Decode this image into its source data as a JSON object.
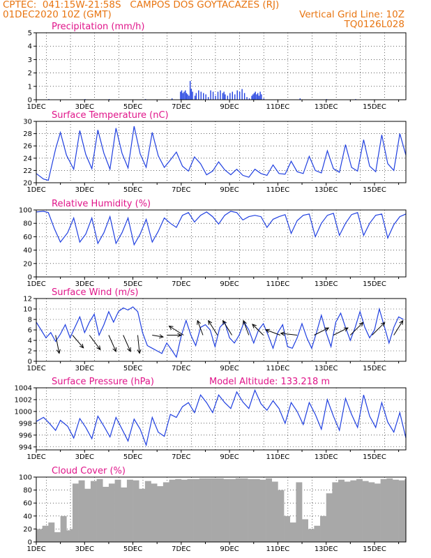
{
  "header": {
    "line1": "CPTEC:  041:15W-21:58S   CAMPOS DOS GOYTACAZES (RJ)",
    "line2": "01DEC2020 10Z (GMT)",
    "grid_note": "Vertical Grid Line: 10Z",
    "code": "TQ0126L028"
  },
  "colors": {
    "header": "#e87511",
    "title": "#e0158a",
    "series": "#1f3fe0",
    "cloud": "#a8a8a8",
    "grid": "#000000"
  },
  "x_ticks": [
    "1DEC",
    "3DEC",
    "5DEC",
    "7DEC",
    "9DEC",
    "11DEC",
    "13DEC",
    "15DEC"
  ],
  "chart_data": [
    {
      "type": "bar",
      "title": "Precipitation (mm/h)",
      "x_unit": "days since 01DEC2020 00Z",
      "ylim": [
        0,
        5
      ],
      "yticks": [
        0,
        1,
        2,
        3,
        4,
        5
      ],
      "series": [
        {
          "x": [
            0.5,
            2.0,
            3.0,
            4.5,
            5.6,
            5.95,
            6.0,
            6.05,
            6.1,
            6.15,
            6.2,
            6.25,
            6.3,
            6.35,
            6.4,
            6.45,
            6.55,
            6.6,
            6.7,
            6.8,
            6.9,
            7.0,
            7.1,
            7.2,
            7.3,
            7.4,
            7.5,
            7.6,
            7.7,
            7.75,
            7.8,
            7.9,
            8.0,
            8.1,
            8.2,
            8.3,
            8.4,
            8.5,
            8.6,
            8.7,
            8.8,
            8.9,
            8.95,
            9.0,
            9.05,
            9.1,
            9.15,
            9.2,
            9.25,
            9.3,
            9.4,
            10.9,
            12.0,
            13.2
          ],
          "values": [
            0.05,
            0.05,
            0.05,
            0.05,
            0.1,
            0.6,
            0.7,
            0.5,
            0.6,
            0.7,
            0.5,
            0.4,
            0.3,
            1.4,
            0.8,
            0.6,
            0.3,
            0.5,
            0.7,
            0.6,
            0.5,
            0.4,
            0.2,
            0.7,
            0.6,
            0.3,
            0.6,
            0.7,
            0.5,
            0.6,
            0.4,
            0.3,
            0.5,
            0.6,
            0.4,
            0.7,
            0.6,
            0.8,
            0.5,
            0.2,
            0.1,
            0.3,
            0.4,
            0.5,
            0.6,
            0.4,
            0.5,
            0.3,
            0.6,
            0.4,
            0.1,
            0.1,
            0.05,
            0.05
          ]
        }
      ]
    },
    {
      "type": "line",
      "title": "Surface Temperature (nC)",
      "ylim": [
        20,
        30
      ],
      "yticks": [
        20,
        22,
        24,
        26,
        28,
        30
      ],
      "series": [
        {
          "x": [
            0.0,
            0.3,
            0.5,
            0.8,
            1.0,
            1.25,
            1.55,
            1.8,
            2.05,
            2.3,
            2.55,
            2.8,
            3.05,
            3.3,
            3.55,
            3.8,
            4.05,
            4.3,
            4.55,
            4.8,
            5.05,
            5.3,
            5.55,
            5.8,
            6.05,
            6.3,
            6.55,
            6.8,
            7.05,
            7.3,
            7.55,
            7.8,
            8.05,
            8.3,
            8.55,
            8.8,
            9.05,
            9.3,
            9.55,
            9.8,
            10.05,
            10.3,
            10.55,
            10.8,
            11.05,
            11.3,
            11.55,
            11.8,
            12.05,
            12.3,
            12.55,
            12.8,
            13.05,
            13.3,
            13.55,
            13.8,
            14.05,
            14.3,
            14.55,
            14.8,
            15.05,
            15.3
          ],
          "values": [
            21.5,
            20.6,
            20.4,
            25.5,
            28.2,
            24.5,
            22.2,
            28.5,
            24.6,
            22.3,
            28.6,
            24.8,
            22.2,
            28.9,
            24.8,
            22.4,
            29.2,
            24.7,
            22.5,
            28.2,
            24.4,
            22.5,
            23.7,
            25.0,
            22.7,
            21.9,
            24.2,
            23.1,
            21.3,
            21.9,
            23.4,
            22.1,
            21.3,
            22.2,
            21.2,
            20.9,
            22.2,
            21.5,
            21.2,
            22.9,
            21.5,
            21.4,
            23.5,
            21.8,
            21.5,
            24.3,
            22.0,
            21.6,
            25.2,
            22.3,
            21.7,
            26.2,
            22.5,
            21.9,
            27.0,
            22.7,
            21.8,
            27.8,
            23.1,
            22.0,
            28.0,
            24.5
          ]
        }
      ]
    },
    {
      "type": "line",
      "title": "Relative Humidity (%)",
      "ylim": [
        0,
        100
      ],
      "yticks": [
        0,
        20,
        40,
        60,
        80,
        100
      ],
      "series": [
        {
          "x": [
            0.0,
            0.3,
            0.5,
            0.75,
            1.0,
            1.3,
            1.55,
            1.8,
            2.05,
            2.3,
            2.55,
            2.8,
            3.05,
            3.3,
            3.55,
            3.8,
            4.05,
            4.3,
            4.55,
            4.8,
            5.05,
            5.3,
            5.55,
            5.8,
            6.05,
            6.3,
            6.55,
            6.8,
            7.05,
            7.3,
            7.55,
            7.8,
            8.05,
            8.3,
            8.55,
            8.8,
            9.05,
            9.3,
            9.55,
            9.8,
            10.05,
            10.3,
            10.55,
            10.8,
            11.05,
            11.3,
            11.55,
            11.8,
            12.05,
            12.3,
            12.55,
            12.8,
            13.05,
            13.3,
            13.55,
            13.8,
            14.05,
            14.3,
            14.55,
            14.8,
            15.05,
            15.3
          ],
          "values": [
            97,
            98,
            96,
            72,
            52,
            66,
            88,
            52,
            64,
            88,
            50,
            66,
            90,
            50,
            66,
            88,
            48,
            64,
            86,
            52,
            68,
            88,
            80,
            74,
            92,
            96,
            82,
            92,
            97,
            90,
            79,
            92,
            98,
            96,
            85,
            90,
            92,
            90,
            74,
            86,
            90,
            93,
            65,
            84,
            92,
            94,
            60,
            80,
            92,
            95,
            62,
            80,
            93,
            96,
            62,
            80,
            92,
            94,
            58,
            78,
            90,
            94
          ]
        }
      ]
    },
    {
      "type": "line",
      "title": "Surface Wind (m/s)",
      "ylim": [
        0,
        12
      ],
      "yticks": [
        0,
        2,
        4,
        6,
        8,
        10,
        12
      ],
      "series": [
        {
          "x": [
            0.0,
            0.2,
            0.4,
            0.6,
            0.8,
            1.0,
            1.2,
            1.4,
            1.6,
            1.8,
            2.0,
            2.2,
            2.4,
            2.6,
            2.8,
            3.0,
            3.2,
            3.4,
            3.6,
            3.8,
            4.0,
            4.2,
            4.4,
            4.6,
            4.8,
            5.0,
            5.2,
            5.4,
            5.6,
            5.8,
            6.0,
            6.2,
            6.4,
            6.6,
            6.8,
            7.0,
            7.2,
            7.4,
            7.6,
            7.8,
            8.0,
            8.2,
            8.4,
            8.6,
            8.8,
            9.0,
            9.2,
            9.4,
            9.6,
            9.8,
            10.0,
            10.2,
            10.4,
            10.6,
            10.8,
            11.0,
            11.2,
            11.4,
            11.6,
            11.8,
            12.0,
            12.2,
            12.4,
            12.6,
            12.8,
            13.0,
            13.2,
            13.4,
            13.6,
            13.8,
            14.0,
            14.2,
            14.4,
            14.6,
            14.8,
            15.0,
            15.2
          ],
          "values": [
            7.5,
            6.0,
            4.5,
            5.5,
            3.8,
            5.2,
            7.0,
            4.5,
            6.5,
            8.5,
            5.5,
            7.5,
            9.0,
            5.0,
            7.0,
            9.5,
            7.5,
            9.5,
            10.2,
            9.8,
            10.4,
            9.5,
            5.5,
            3.0,
            2.5,
            2.0,
            1.5,
            3.5,
            2.2,
            0.8,
            4.8,
            7.8,
            5.0,
            3.0,
            6.5,
            7.0,
            6.0,
            2.8,
            6.5,
            7.5,
            4.5,
            3.5,
            5.0,
            7.5,
            6.0,
            3.5,
            6.0,
            7.2,
            5.0,
            2.5,
            5.5,
            7.0,
            2.8,
            2.5,
            4.5,
            7.2,
            4.5,
            2.5,
            5.5,
            8.8,
            5.5,
            2.8,
            7.5,
            9.2,
            6.5,
            4.0,
            6.5,
            9.5,
            6.5,
            4.5,
            6.0,
            10.0,
            6.8,
            3.5,
            6.5,
            8.5,
            8.0
          ]
        }
      ],
      "wind_arrows": [
        {
          "x": 0.8,
          "u": 0.2,
          "v": -1.0
        },
        {
          "x": 1.5,
          "u": 0.6,
          "v": -0.7
        },
        {
          "x": 2.2,
          "u": 0.6,
          "v": -0.8
        },
        {
          "x": 3.0,
          "u": 0.4,
          "v": -0.9
        },
        {
          "x": 3.6,
          "u": 0.4,
          "v": -0.9
        },
        {
          "x": 4.2,
          "u": 0.1,
          "v": -1.0
        },
        {
          "x": 4.8,
          "u": 0.6,
          "v": -0.1
        },
        {
          "x": 5.4,
          "u": 0.8,
          "v": 0.0
        },
        {
          "x": 6.1,
          "u": -0.8,
          "v": 0.5
        },
        {
          "x": 6.9,
          "u": -0.3,
          "v": 0.8
        },
        {
          "x": 7.5,
          "u": -0.5,
          "v": 0.8
        },
        {
          "x": 8.1,
          "u": -0.5,
          "v": 0.8
        },
        {
          "x": 8.8,
          "u": -0.3,
          "v": 0.8
        },
        {
          "x": 9.4,
          "u": -0.6,
          "v": 0.6
        },
        {
          "x": 10.1,
          "u": -0.8,
          "v": 0.3
        },
        {
          "x": 10.8,
          "u": -0.9,
          "v": 0.1
        },
        {
          "x": 11.5,
          "u": 0.8,
          "v": 0.4
        },
        {
          "x": 12.3,
          "u": 0.8,
          "v": 0.4
        },
        {
          "x": 13.0,
          "u": 0.7,
          "v": 0.7
        },
        {
          "x": 13.9,
          "u": 0.7,
          "v": 0.7
        },
        {
          "x": 14.8,
          "u": 0.5,
          "v": 0.8
        }
      ]
    },
    {
      "type": "line",
      "title": "Surface Pressure (hPa)",
      "annotation": "Model Altitude: 133.218  m",
      "ylim": [
        993.5,
        1004
      ],
      "yticks": [
        994,
        996,
        998,
        1000,
        1002,
        1004
      ],
      "series": [
        {
          "x": [
            0.0,
            0.3,
            0.5,
            0.8,
            1.0,
            1.3,
            1.55,
            1.8,
            2.05,
            2.3,
            2.55,
            2.8,
            3.05,
            3.3,
            3.55,
            3.8,
            4.05,
            4.3,
            4.55,
            4.8,
            5.05,
            5.3,
            5.55,
            5.8,
            6.05,
            6.3,
            6.55,
            6.8,
            7.05,
            7.3,
            7.55,
            7.8,
            8.05,
            8.3,
            8.55,
            8.8,
            9.05,
            9.3,
            9.55,
            9.8,
            10.05,
            10.3,
            10.55,
            10.8,
            11.05,
            11.3,
            11.55,
            11.8,
            12.05,
            12.3,
            12.55,
            12.8,
            13.05,
            13.3,
            13.55,
            13.8,
            14.05,
            14.3,
            14.55,
            14.8,
            15.05,
            15.3
          ],
          "values": [
            998.3,
            999.0,
            998.2,
            996.8,
            998.5,
            997.5,
            995.5,
            998.8,
            997.3,
            995.4,
            999.2,
            997.5,
            995.7,
            999.0,
            997.0,
            995.0,
            998.7,
            997.0,
            994.3,
            999.0,
            996.5,
            995.8,
            999.5,
            999.0,
            1000.8,
            1001.5,
            999.8,
            1002.8,
            1001.5,
            999.8,
            1002.8,
            1001.5,
            1000.5,
            1003.3,
            1001.6,
            1000.5,
            1003.6,
            1001.3,
            1000.2,
            1001.8,
            1000.5,
            998.0,
            1001.5,
            1000.0,
            997.8,
            1001.5,
            999.5,
            997.0,
            1002.0,
            999.2,
            996.8,
            1002.2,
            999.5,
            997.3,
            1002.8,
            999.2,
            997.3,
            1001.5,
            998.2,
            996.5,
            999.8,
            995.5
          ]
        }
      ]
    },
    {
      "type": "bar",
      "title": "Cloud Cover (%)",
      "ylim": [
        0,
        100
      ],
      "yticks": [
        0,
        20,
        40,
        60,
        80,
        100
      ],
      "series": [
        {
          "x": [
            0.0,
            0.25,
            0.5,
            0.75,
            1.0,
            1.25,
            1.4,
            1.5,
            1.75,
            2.0,
            2.25,
            2.5,
            2.75,
            3.0,
            3.25,
            3.5,
            3.75,
            4.0,
            4.25,
            4.5,
            4.75,
            5.0,
            5.25,
            5.5,
            5.75,
            6.0,
            6.25,
            6.5,
            6.75,
            7.0,
            7.25,
            7.5,
            7.75,
            8.0,
            8.25,
            8.5,
            8.75,
            9.0,
            9.25,
            9.5,
            9.75,
            10.0,
            10.25,
            10.5,
            10.75,
            11.0,
            11.25,
            11.5,
            11.75,
            12.0,
            12.25,
            12.5,
            12.75,
            13.0,
            13.25,
            13.5,
            13.75,
            14.0,
            14.25,
            14.5,
            14.75,
            15.0,
            15.25
          ],
          "values": [
            20,
            25,
            30,
            15,
            40,
            18,
            20,
            90,
            95,
            82,
            94,
            97,
            85,
            90,
            96,
            84,
            96,
            95,
            82,
            94,
            90,
            86,
            92,
            96,
            97,
            96,
            97,
            97,
            98,
            98,
            98,
            98,
            97,
            97,
            98,
            98,
            97,
            97,
            96,
            98,
            93,
            80,
            40,
            30,
            92,
            35,
            20,
            25,
            40,
            75,
            92,
            96,
            93,
            95,
            97,
            94,
            92,
            90,
            97,
            98,
            96,
            95,
            97
          ]
        }
      ]
    }
  ]
}
